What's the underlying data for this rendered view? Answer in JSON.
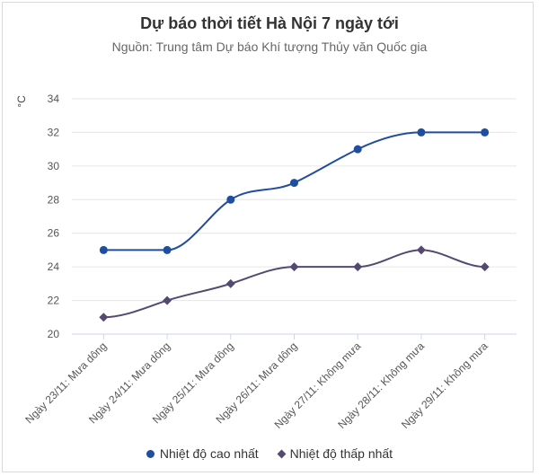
{
  "chart_data": {
    "type": "line",
    "title": "Dự báo thời tiết Hà Nội 7 ngày tới",
    "subtitle": "Nguồn: Trung tâm Dự báo Khí tượng Thủy văn Quốc gia",
    "ylabel": "°C",
    "ylim": [
      20,
      34
    ],
    "yticks": [
      20,
      22,
      24,
      26,
      28,
      30,
      32,
      34
    ],
    "categories": [
      "Ngày 23/11: Mưa dông",
      "Ngày 24/11: Mưa dông",
      "Ngày 25/11: Mưa dông",
      "Ngày 26/11: Mưa dông",
      "Ngày 27/11: Không mưa",
      "Ngày 28/11: Không mưa",
      "Ngày 29/11: Không mưa"
    ],
    "series": [
      {
        "name": "Nhiệt độ cao nhất",
        "values": [
          25,
          25,
          28,
          29,
          31,
          32,
          32
        ],
        "color": "#1f4e9e",
        "marker": "circle"
      },
      {
        "name": "Nhiệt độ thấp nhất",
        "values": [
          21,
          22,
          23,
          24,
          24,
          25,
          24
        ],
        "color": "#544a71",
        "marker": "diamond"
      }
    ],
    "grid": true,
    "legend": "bottom"
  }
}
